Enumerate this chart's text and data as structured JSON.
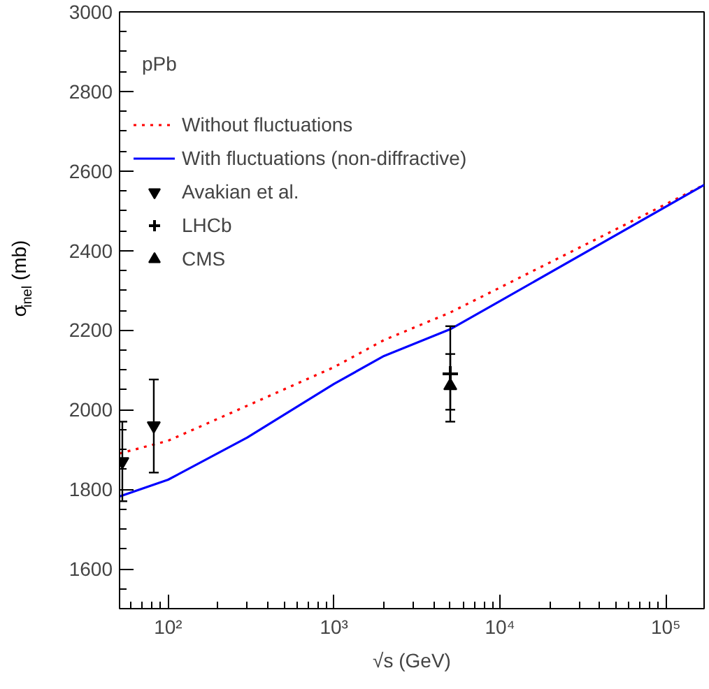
{
  "chart_data": {
    "type": "line",
    "xlabel": "√s (GeV)",
    "ylabel": "σ$_{inel}$ (mb)",
    "log": "x",
    "xlim": [
      51,
      170000
    ],
    "ylim": [
      1500,
      3000
    ],
    "xticks": [
      {
        "value": 100,
        "label": "10²"
      },
      {
        "value": 1000,
        "label": "10³"
      },
      {
        "value": 10000,
        "label": "10⁴"
      },
      {
        "value": 100000,
        "label": "10⁵"
      }
    ],
    "yticks": [
      1600,
      1800,
      2000,
      2200,
      2400,
      2600,
      2800,
      3000
    ],
    "grid": false,
    "legend": "top left",
    "annotations": [
      "pPb"
    ],
    "series": [
      {
        "name": "Without fluctuations",
        "color": "#ff0000",
        "line_style": "dotted",
        "x": [
          51,
          100,
          300,
          1000,
          2000,
          5000,
          10000,
          170000
        ],
        "values": [
          1890,
          1922,
          2010,
          2107,
          2175,
          2244,
          2307,
          2565
        ]
      },
      {
        "name": "With fluctuations (non-diffractive)",
        "color": "#0000ff",
        "line_style": "solid",
        "x": [
          51,
          100,
          300,
          1000,
          2000,
          5000,
          10000,
          170000
        ],
        "values": [
          1782,
          1824,
          1930,
          2065,
          2135,
          2202,
          2273,
          2565
        ]
      },
      {
        "name": "Avakian et al.",
        "type": "scatter",
        "color": "#000000",
        "marker": "triangle",
        "x": [
          53,
          82
        ],
        "values": [
          1870,
          1960
        ],
        "errors": [
          [
            1770,
            1970
          ],
          [
            1842,
            2076
          ]
        ]
      },
      {
        "name": "LHCb",
        "type": "scatter",
        "color": "#000000",
        "marker": "cross",
        "x": [
          5020
        ],
        "values": [
          2090
        ],
        "errors": [
          [
            1970,
            2210
          ]
        ]
      },
      {
        "name": "CMS",
        "type": "scatter",
        "color": "#000000",
        "marker": "triangle",
        "x": [
          5020
        ],
        "values": [
          2060
        ],
        "errors": [
          [
            2000,
            2140
          ]
        ]
      }
    ]
  }
}
